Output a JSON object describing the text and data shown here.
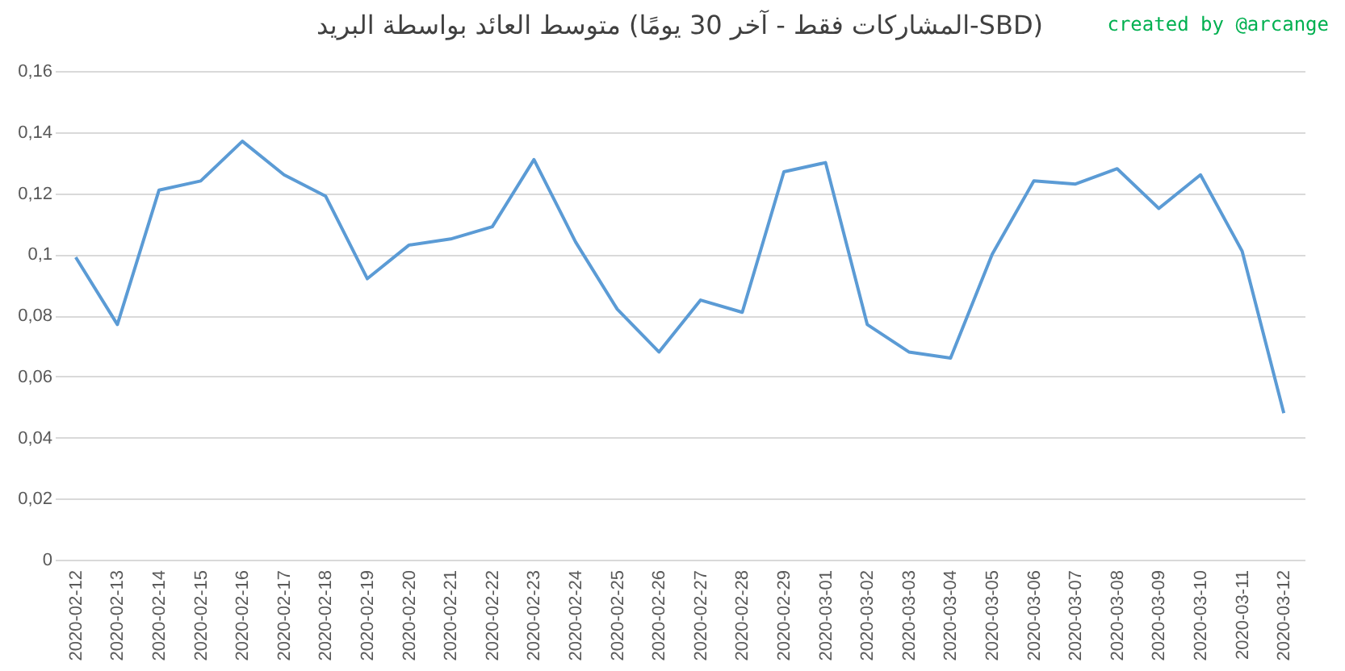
{
  "chart_data": {
    "type": "line",
    "title": "متوسط العائد بواسطة البريد (المشاركات فقط - آخر 30 يومًا-SBD)",
    "annotations": [
      "created by @arcange"
    ],
    "categories": [
      "2020-02-12",
      "2020-02-13",
      "2020-02-14",
      "2020-02-15",
      "2020-02-16",
      "2020-02-17",
      "2020-02-18",
      "2020-02-19",
      "2020-02-20",
      "2020-02-21",
      "2020-02-22",
      "2020-02-23",
      "2020-02-24",
      "2020-02-25",
      "2020-02-26",
      "2020-02-27",
      "2020-02-28",
      "2020-02-29",
      "2020-03-01",
      "2020-03-02",
      "2020-03-03",
      "2020-03-04",
      "2020-03-05",
      "2020-03-06",
      "2020-03-07",
      "2020-03-08",
      "2020-03-09",
      "2020-03-10",
      "2020-03-11",
      "2020-03-12"
    ],
    "series": [
      {
        "color": "#5b9bd5",
        "values": [
          0.099,
          0.077,
          0.121,
          0.124,
          0.137,
          0.126,
          0.119,
          0.092,
          0.103,
          0.105,
          0.109,
          0.131,
          0.104,
          0.082,
          0.068,
          0.085,
          0.081,
          0.127,
          0.13,
          0.077,
          0.068,
          0.066,
          0.1,
          0.124,
          0.123,
          0.128,
          0.115,
          0.126,
          0.101,
          0.048
        ]
      }
    ],
    "ylim": [
      0,
      0.16
    ],
    "yticks": [
      {
        "value": 0,
        "label": "0"
      },
      {
        "value": 0.02,
        "label": "0,02"
      },
      {
        "value": 0.04,
        "label": "0,04"
      },
      {
        "value": 0.06,
        "label": "0,06"
      },
      {
        "value": 0.08,
        "label": "0,08"
      },
      {
        "value": 0.1,
        "label": "0,1"
      },
      {
        "value": 0.12,
        "label": "0,12"
      },
      {
        "value": 0.14,
        "label": "0,14"
      },
      {
        "value": 0.16,
        "label": "0,16"
      }
    ],
    "grid": "y",
    "legend": false,
    "marker": "none",
    "line_style": "solid"
  }
}
